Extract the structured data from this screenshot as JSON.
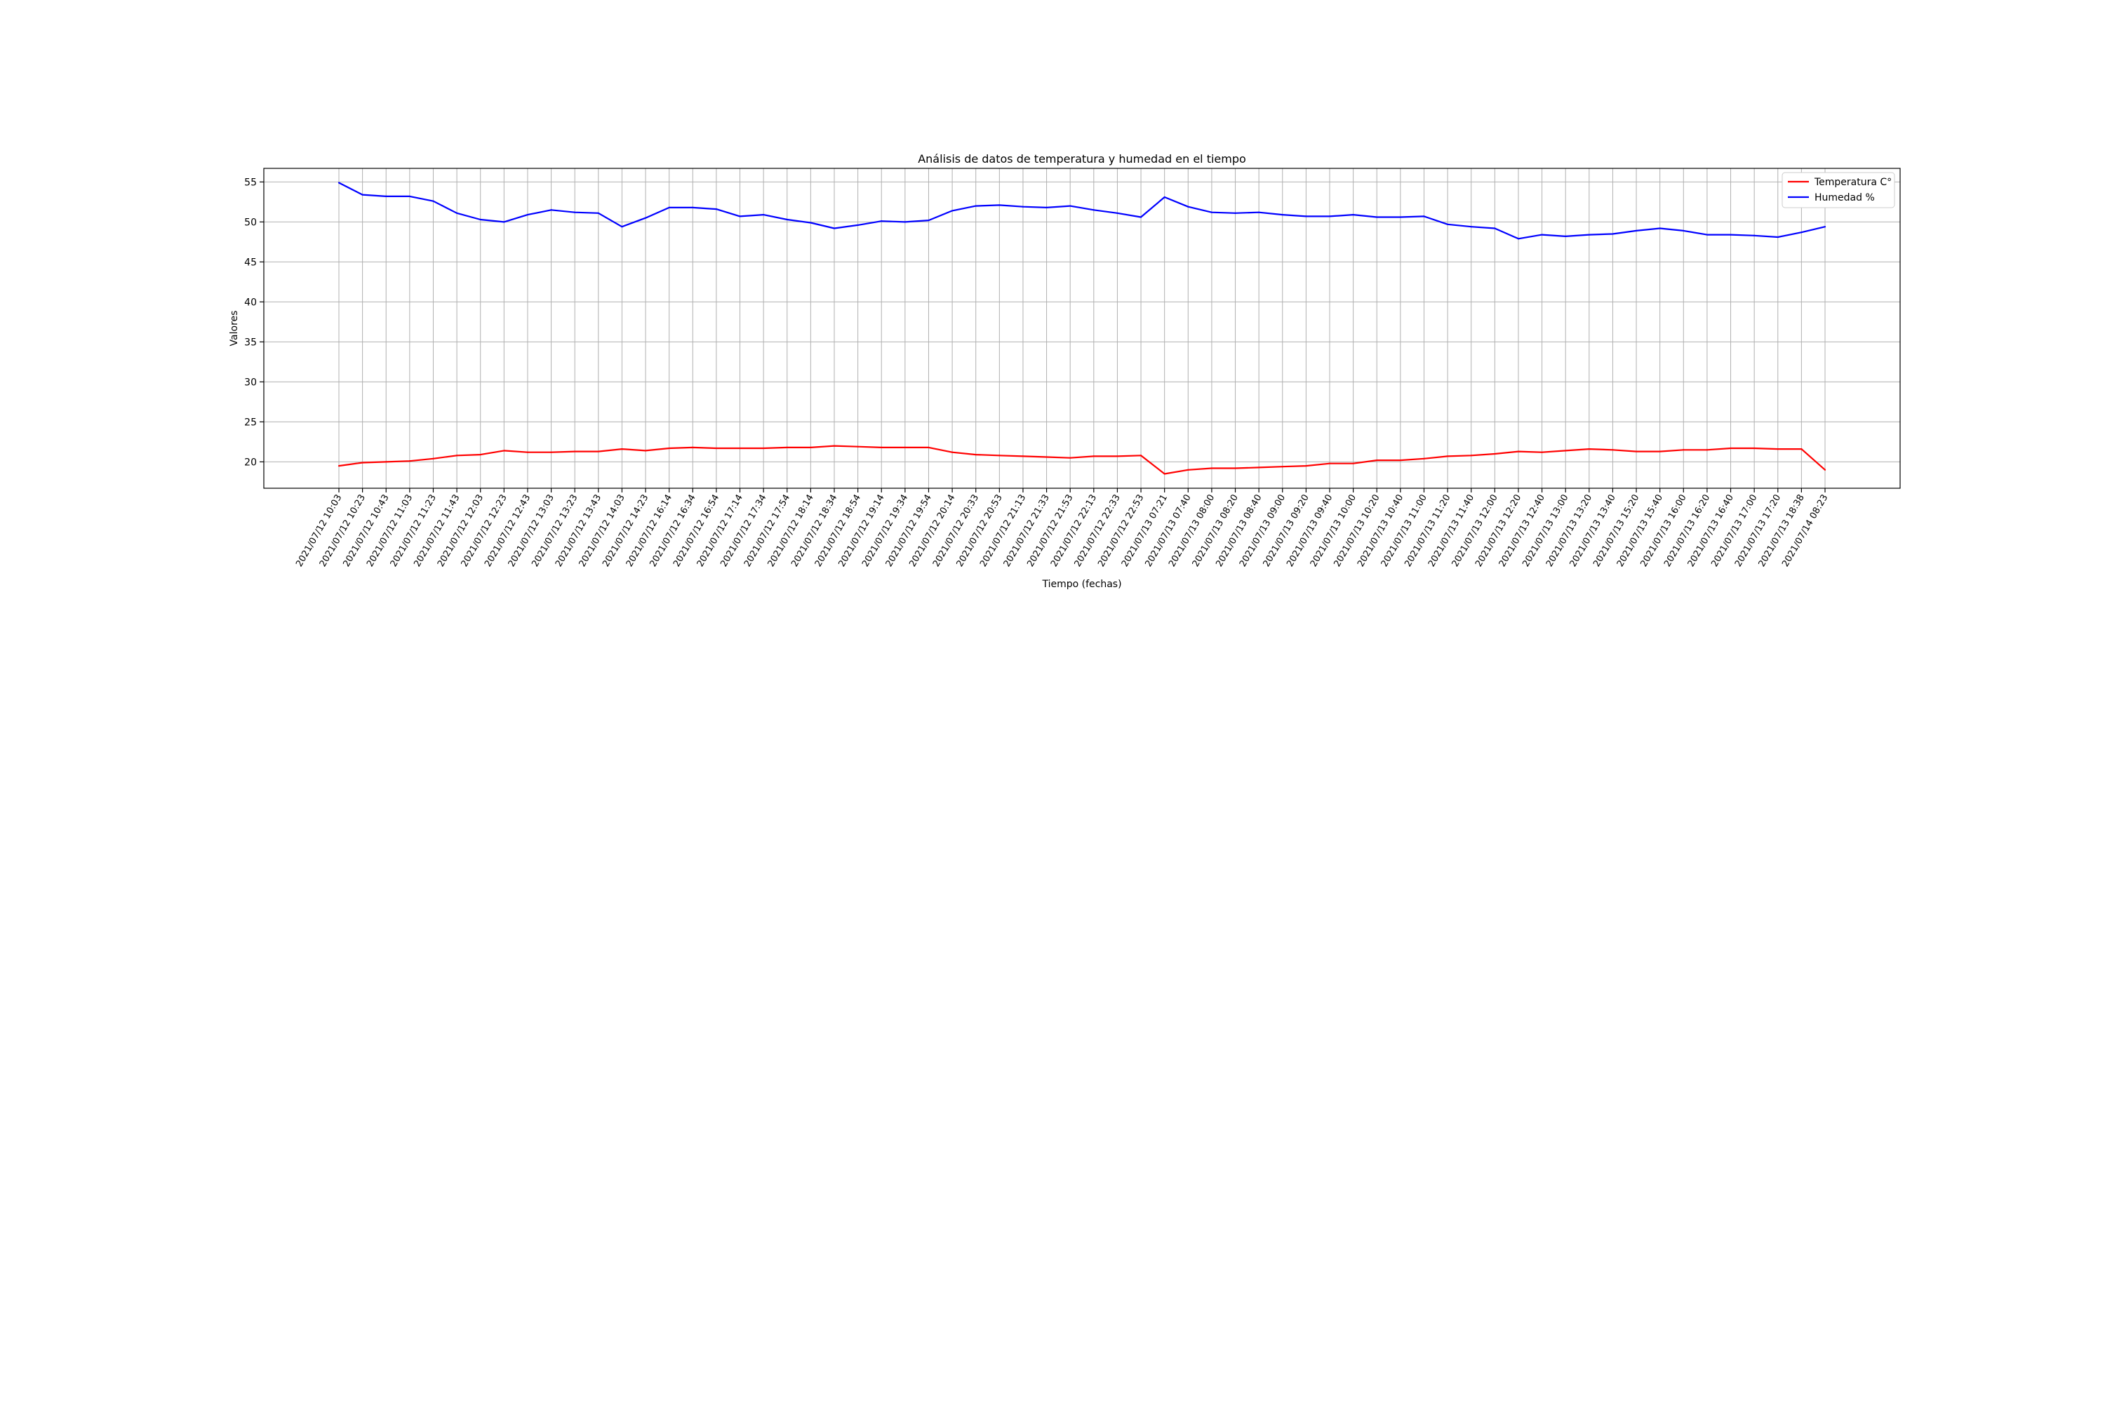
{
  "chart_data": {
    "type": "line",
    "title": "Análisis de datos de temperatura y humedad en el tiempo",
    "xlabel": "Tiempo (fechas)",
    "ylabel": "Valores",
    "ylim": [
      16.7,
      56.7
    ],
    "yticks": [
      20,
      25,
      30,
      35,
      40,
      45,
      50,
      55
    ],
    "grid": true,
    "legend_position": "top-right",
    "categories": [
      "2021/07/12 10:03",
      "2021/07/12 10:23",
      "2021/07/12 10:43",
      "2021/07/12 11:03",
      "2021/07/12 11:23",
      "2021/07/12 11:43",
      "2021/07/12 12:03",
      "2021/07/12 12:23",
      "2021/07/12 12:43",
      "2021/07/12 13:03",
      "2021/07/12 13:23",
      "2021/07/12 13:43",
      "2021/07/12 14:03",
      "2021/07/12 14:23",
      "2021/07/12 16:14",
      "2021/07/12 16:34",
      "2021/07/12 16:54",
      "2021/07/12 17:14",
      "2021/07/12 17:34",
      "2021/07/12 17:54",
      "2021/07/12 18:14",
      "2021/07/12 18:34",
      "2021/07/12 18:54",
      "2021/07/12 19:14",
      "2021/07/12 19:34",
      "2021/07/12 19:54",
      "2021/07/12 20:14",
      "2021/07/12 20:33",
      "2021/07/12 20:53",
      "2021/07/12 21:13",
      "2021/07/12 21:33",
      "2021/07/12 21:53",
      "2021/07/12 22:13",
      "2021/07/12 22:33",
      "2021/07/12 22:53",
      "2021/07/13 07:21",
      "2021/07/13 07:40",
      "2021/07/13 08:00",
      "2021/07/13 08:20",
      "2021/07/13 08:40",
      "2021/07/13 09:00",
      "2021/07/13 09:20",
      "2021/07/13 09:40",
      "2021/07/13 10:00",
      "2021/07/13 10:20",
      "2021/07/13 10:40",
      "2021/07/13 11:00",
      "2021/07/13 11:20",
      "2021/07/13 11:40",
      "2021/07/13 12:00",
      "2021/07/13 12:20",
      "2021/07/13 12:40",
      "2021/07/13 13:00",
      "2021/07/13 13:20",
      "2021/07/13 13:40",
      "2021/07/13 15:20",
      "2021/07/13 15:40",
      "2021/07/13 16:00",
      "2021/07/13 16:20",
      "2021/07/13 16:40",
      "2021/07/13 17:00",
      "2021/07/13 17:20",
      "2021/07/13 18:38",
      "2021/07/14 08:23"
    ],
    "series": [
      {
        "name": "Temperatura C°",
        "color": "#ff0000",
        "values": [
          19.5,
          19.9,
          20.0,
          20.1,
          20.4,
          20.8,
          20.9,
          21.4,
          21.2,
          21.2,
          21.3,
          21.3,
          21.6,
          21.4,
          21.7,
          21.8,
          21.7,
          21.7,
          21.7,
          21.8,
          21.8,
          22.0,
          21.9,
          21.8,
          21.8,
          21.8,
          21.2,
          20.9,
          20.8,
          20.7,
          20.6,
          20.5,
          20.7,
          20.7,
          20.8,
          18.5,
          19.0,
          19.2,
          19.2,
          19.3,
          19.4,
          19.5,
          19.8,
          19.8,
          20.2,
          20.2,
          20.4,
          20.7,
          20.8,
          21.0,
          21.3,
          21.2,
          21.4,
          21.6,
          21.5,
          21.3,
          21.3,
          21.5,
          21.5,
          21.7,
          21.7,
          21.6,
          21.6,
          19.0
        ]
      },
      {
        "name": "Humedad %",
        "color": "#0000ff",
        "values": [
          54.9,
          53.4,
          53.2,
          53.2,
          52.6,
          51.1,
          50.3,
          50.0,
          50.9,
          51.5,
          51.2,
          51.1,
          49.4,
          50.5,
          51.8,
          51.8,
          51.6,
          50.7,
          50.9,
          50.3,
          49.9,
          49.2,
          49.6,
          50.1,
          50.0,
          50.2,
          51.4,
          52.0,
          52.1,
          51.9,
          51.8,
          52.0,
          51.5,
          51.1,
          50.6,
          53.1,
          51.9,
          51.2,
          51.1,
          51.2,
          50.9,
          50.7,
          50.7,
          50.9,
          50.6,
          50.6,
          50.7,
          49.7,
          49.4,
          49.2,
          47.9,
          48.4,
          48.2,
          48.4,
          48.5,
          48.9,
          49.2,
          48.9,
          48.4,
          48.4,
          48.3,
          48.1,
          48.7,
          49.4
        ]
      }
    ]
  }
}
